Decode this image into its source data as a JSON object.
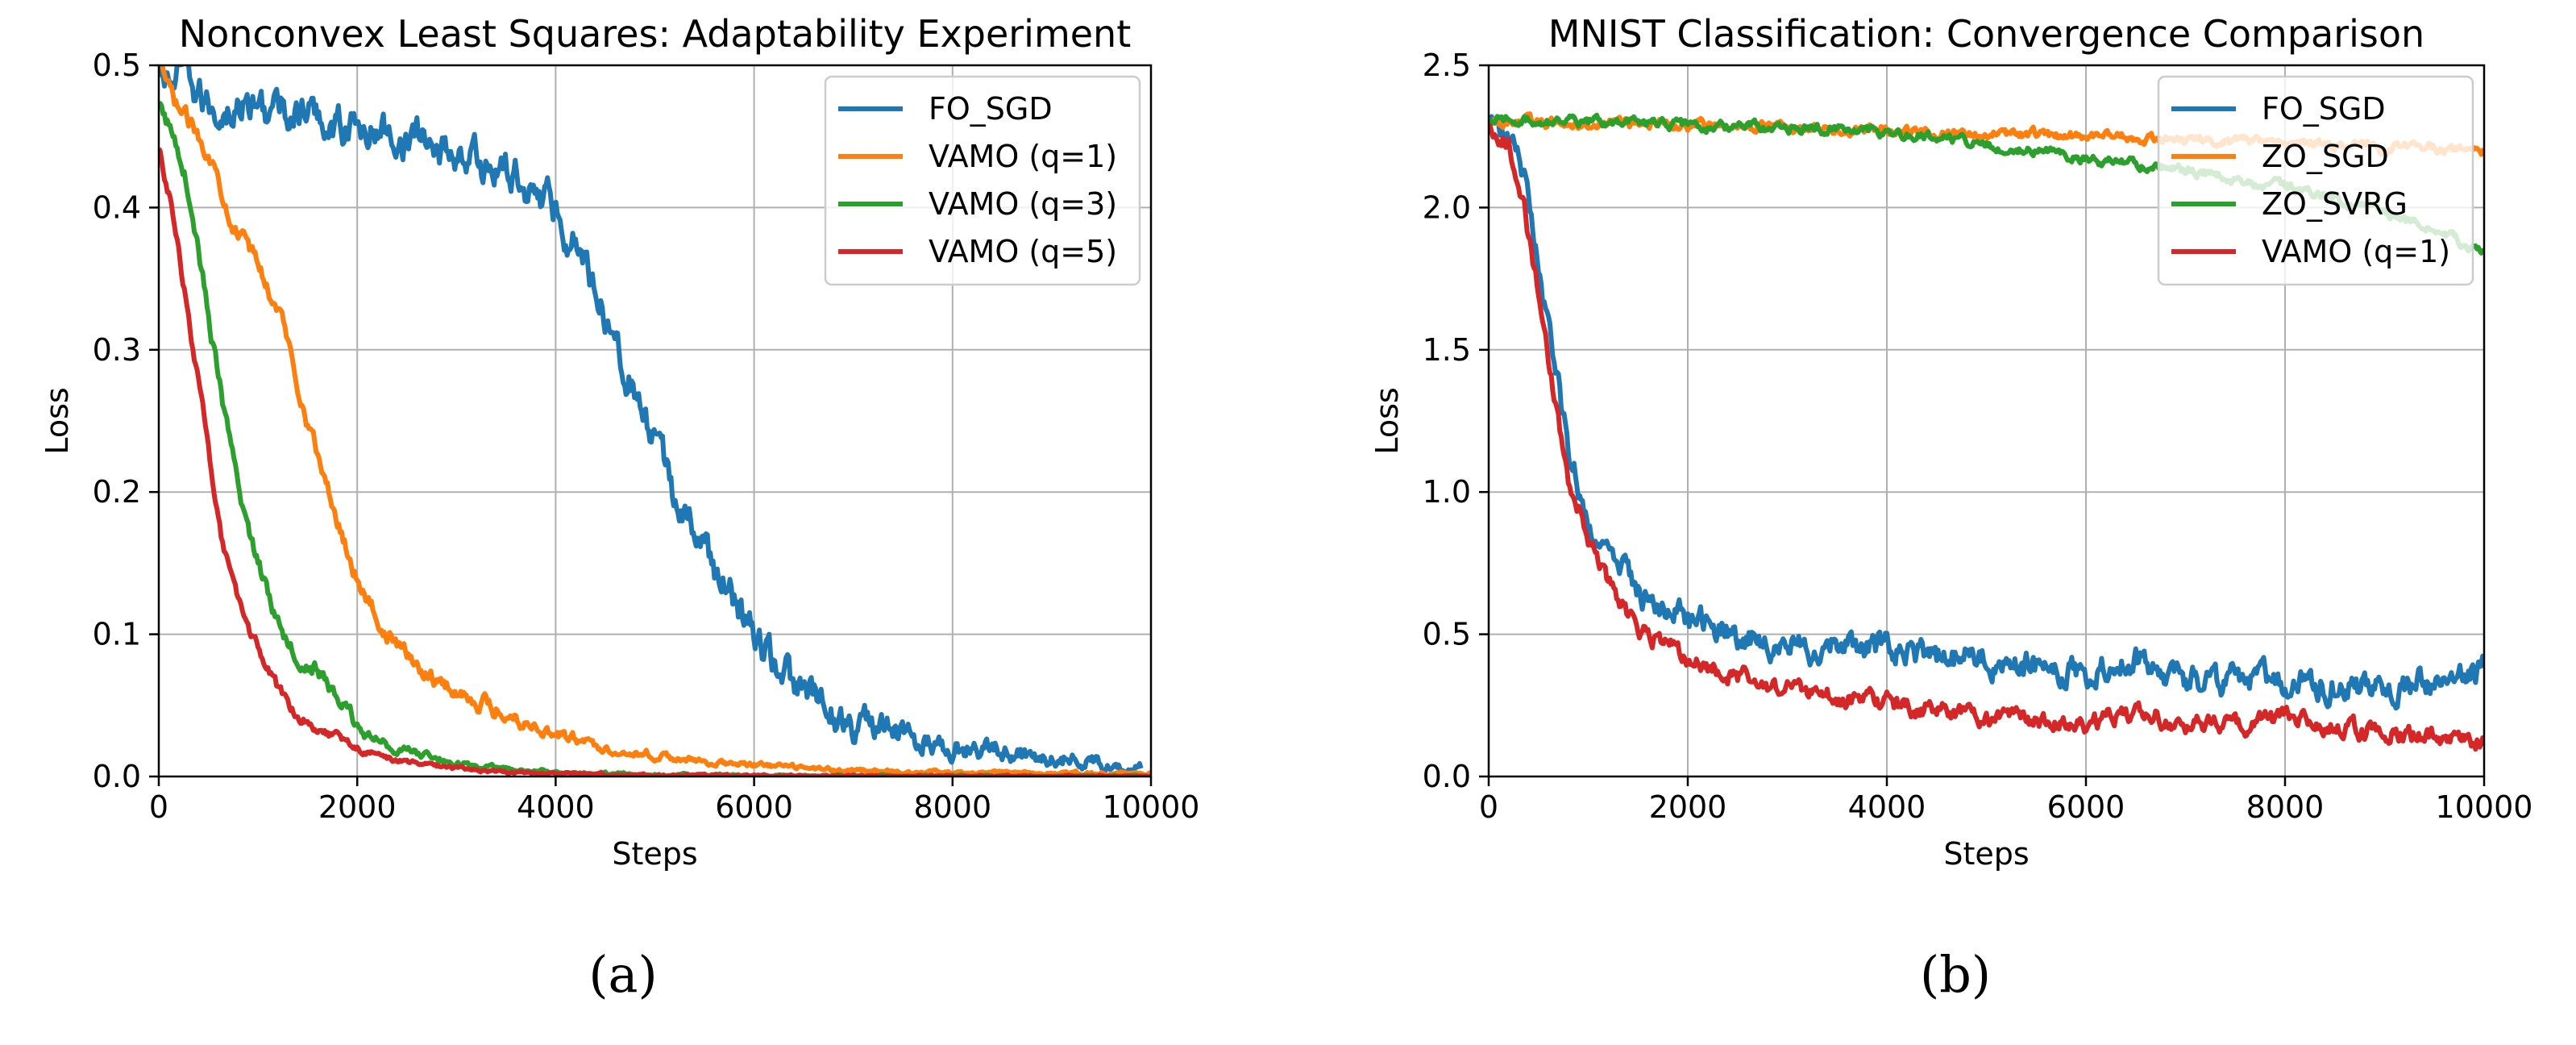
{
  "chart_data": [
    {
      "type": "line",
      "title": "Nonconvex Least Squares: Adaptability Experiment",
      "xlabel": "Steps",
      "ylabel": "Loss",
      "xlim": [
        0,
        10000
      ],
      "ylim": [
        0,
        0.5
      ],
      "xticks": [
        0,
        2000,
        4000,
        6000,
        8000,
        10000
      ],
      "xtick_labels": [
        "0",
        "2000",
        "4000",
        "6000",
        "8000",
        "10000"
      ],
      "yticks": [
        0,
        0.1,
        0.2,
        0.3,
        0.4,
        0.5
      ],
      "ytick_labels": [
        "0.0",
        "0.1",
        "0.2",
        "0.3",
        "0.4",
        "0.5"
      ],
      "grid": true,
      "legend_position": "top-right",
      "caption": "(a)",
      "series": [
        {
          "name": "FO_SGD",
          "color": "#1f77b4",
          "x": [
            0,
            250,
            500,
            750,
            1000,
            1500,
            2000,
            2500,
            3000,
            3250,
            3500,
            3750,
            4000,
            4250,
            4500,
            4750,
            5000,
            5250,
            5500,
            5750,
            6000,
            6250,
            6500,
            6750,
            7000,
            7500,
            8000,
            8500,
            9000,
            9500,
            9900
          ],
          "y": [
            0.49,
            0.49,
            0.47,
            0.47,
            0.47,
            0.465,
            0.455,
            0.45,
            0.44,
            0.43,
            0.425,
            0.415,
            0.4,
            0.37,
            0.33,
            0.28,
            0.23,
            0.19,
            0.16,
            0.13,
            0.1,
            0.075,
            0.058,
            0.045,
            0.038,
            0.028,
            0.022,
            0.018,
            0.014,
            0.009,
            0.007
          ]
        },
        {
          "name": "VAMO (q=1)",
          "color": "#ff7f0e",
          "x": [
            0,
            150,
            300,
            500,
            750,
            1000,
            1250,
            1500,
            1750,
            2000,
            2250,
            2500,
            2750,
            3000,
            3500,
            4000,
            4500,
            5000,
            5500,
            6000,
            7000,
            8000,
            9000,
            10000
          ],
          "y": [
            0.5,
            0.475,
            0.46,
            0.44,
            0.39,
            0.36,
            0.32,
            0.25,
            0.19,
            0.14,
            0.105,
            0.085,
            0.07,
            0.06,
            0.045,
            0.03,
            0.02,
            0.015,
            0.01,
            0.008,
            0.004,
            0.003,
            0.002,
            0.002
          ]
        },
        {
          "name": "VAMO (q=3)",
          "color": "#2ca02c",
          "x": [
            0,
            150,
            250,
            400,
            600,
            800,
            1000,
            1200,
            1400,
            1600,
            1800,
            2000,
            2200,
            2500,
            3000,
            3500,
            4000,
            5000,
            6000,
            7000,
            8000,
            10000
          ],
          "y": [
            0.47,
            0.45,
            0.43,
            0.37,
            0.28,
            0.2,
            0.15,
            0.11,
            0.085,
            0.075,
            0.055,
            0.035,
            0.025,
            0.018,
            0.009,
            0.005,
            0.003,
            0.001,
            0.0005,
            0.0003,
            0.0002,
            0.0001
          ]
        },
        {
          "name": "VAMO (q=5)",
          "color": "#d62728",
          "x": [
            0,
            100,
            200,
            350,
            500,
            650,
            800,
            1000,
            1200,
            1400,
            1600,
            1800,
            2000,
            2200,
            2500,
            3000,
            3500,
            4000,
            5000,
            6000,
            8000,
            10000
          ],
          "y": [
            0.44,
            0.41,
            0.37,
            0.3,
            0.23,
            0.16,
            0.12,
            0.09,
            0.06,
            0.045,
            0.035,
            0.028,
            0.02,
            0.015,
            0.01,
            0.006,
            0.003,
            0.002,
            0.001,
            0.0005,
            0.0002,
            0.0001
          ]
        }
      ]
    },
    {
      "type": "line",
      "title": "MNIST Classification: Convergence Comparison",
      "xlabel": "Steps",
      "ylabel": "Loss",
      "xlim": [
        0,
        10000
      ],
      "ylim": [
        0,
        2.5
      ],
      "xticks": [
        0,
        2000,
        4000,
        6000,
        8000,
        10000
      ],
      "xtick_labels": [
        "0",
        "2000",
        "4000",
        "6000",
        "8000",
        "10000"
      ],
      "yticks": [
        0,
        0.5,
        1.0,
        1.5,
        2.0,
        2.5
      ],
      "ytick_labels": [
        "0.0",
        "0.5",
        "1.0",
        "1.5",
        "2.0",
        "2.5"
      ],
      "grid": true,
      "legend_position": "top-right",
      "caption": "(b)",
      "series": [
        {
          "name": "FO_SGD",
          "color": "#1f77b4",
          "x": [
            0,
            200,
            350,
            500,
            650,
            800,
            1000,
            1200,
            1400,
            1600,
            2000,
            2500,
            3000,
            3500,
            4000,
            4500,
            5000,
            5500,
            6000,
            6500,
            7000,
            7500,
            8000,
            8500,
            9000,
            9500,
            10000
          ],
          "y": [
            2.3,
            2.25,
            2.1,
            1.8,
            1.45,
            1.15,
            0.9,
            0.78,
            0.7,
            0.63,
            0.55,
            0.5,
            0.47,
            0.45,
            0.44,
            0.42,
            0.41,
            0.38,
            0.37,
            0.4,
            0.35,
            0.33,
            0.34,
            0.32,
            0.31,
            0.33,
            0.36
          ]
        },
        {
          "name": "ZO_SGD",
          "color": "#ff7f0e",
          "x": [
            0,
            1000,
            2000,
            3000,
            4000,
            5000,
            6000,
            7000,
            8000,
            9000,
            10000
          ],
          "y": [
            2.3,
            2.3,
            2.29,
            2.28,
            2.27,
            2.26,
            2.25,
            2.24,
            2.23,
            2.21,
            2.2
          ]
        },
        {
          "name": "ZO_SVRG",
          "color": "#2ca02c",
          "x": [
            0,
            1000,
            2000,
            3000,
            4000,
            4500,
            5000,
            5500,
            6000,
            6500,
            7000,
            7500,
            8000,
            8500,
            9000,
            9500,
            10000
          ],
          "y": [
            2.31,
            2.3,
            2.29,
            2.28,
            2.26,
            2.25,
            2.22,
            2.2,
            2.17,
            2.15,
            2.13,
            2.1,
            2.07,
            2.03,
            1.98,
            1.92,
            1.84
          ]
        },
        {
          "name": "VAMO (q=1)",
          "color": "#d62728",
          "x": [
            0,
            200,
            350,
            500,
            650,
            800,
            1000,
            1200,
            1400,
            1600,
            2000,
            2500,
            3000,
            3500,
            4000,
            4500,
            5000,
            5500,
            6000,
            6500,
            7000,
            7500,
            8000,
            8500,
            9000,
            9500,
            10000
          ],
          "y": [
            2.3,
            2.22,
            2.0,
            1.7,
            1.35,
            1.05,
            0.85,
            0.68,
            0.57,
            0.5,
            0.42,
            0.35,
            0.31,
            0.28,
            0.26,
            0.23,
            0.21,
            0.2,
            0.19,
            0.22,
            0.19,
            0.18,
            0.2,
            0.17,
            0.16,
            0.14,
            0.13
          ]
        }
      ]
    }
  ]
}
